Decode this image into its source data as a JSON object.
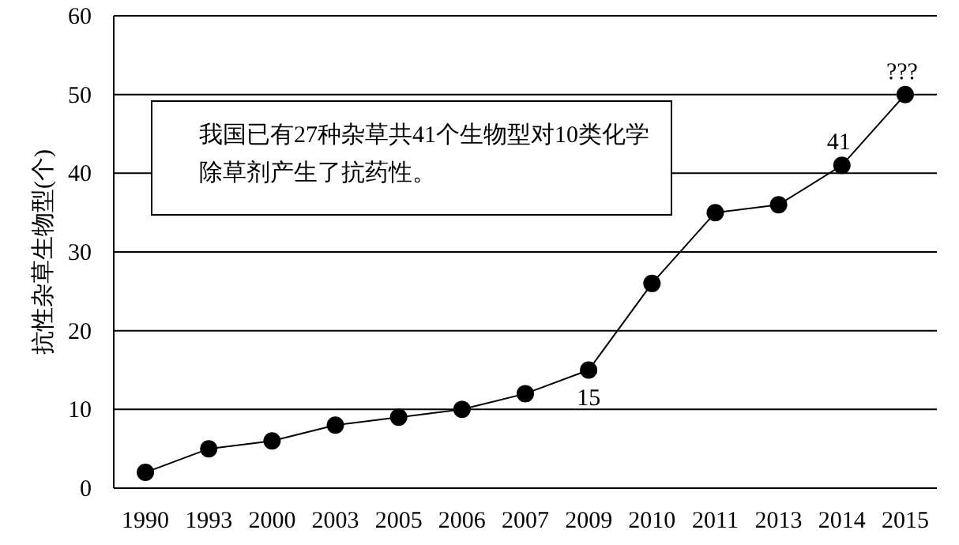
{
  "chart_data": {
    "type": "line",
    "categories": [
      "1990",
      "1993",
      "2000",
      "2003",
      "2005",
      "2006",
      "2007",
      "2009",
      "2010",
      "2011",
      "2013",
      "2014",
      "2015"
    ],
    "series": [
      {
        "color": "#000000",
        "values": [
          2,
          5,
          6,
          8,
          9,
          10,
          12,
          15,
          26,
          35,
          36,
          41,
          50
        ],
        "value_labels": [
          null,
          null,
          null,
          null,
          null,
          null,
          null,
          "15",
          null,
          null,
          null,
          "41",
          "???"
        ]
      }
    ],
    "ylabel": "抗性杂草生物型(个)",
    "annotations": [
      "我国已有27种杂草共41个生物型对10类化学除草剂产生了抗药性。"
    ],
    "ylim": [
      0,
      60
    ],
    "yticks": [
      0,
      10,
      20,
      30,
      40,
      50,
      60
    ],
    "grid": "y",
    "marker": "circle",
    "line_style": "solid"
  }
}
